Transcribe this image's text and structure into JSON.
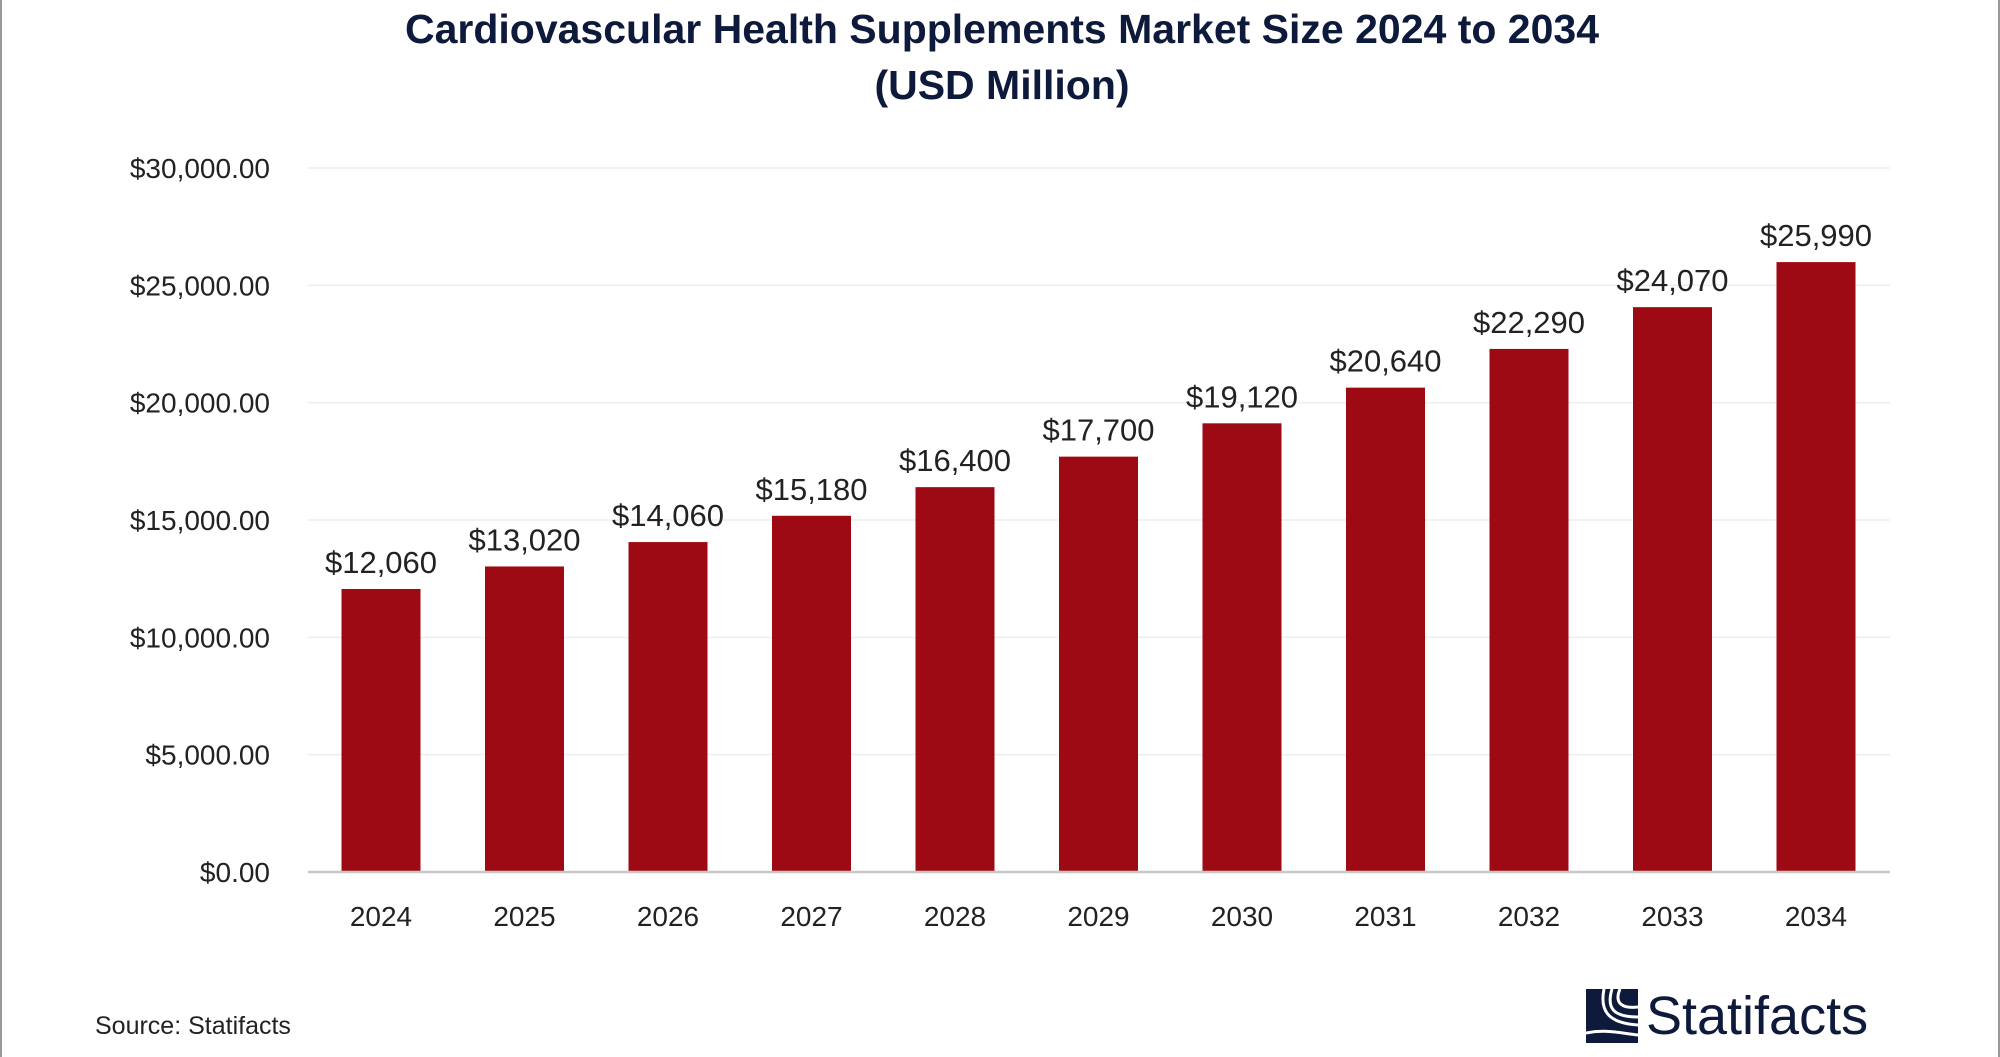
{
  "chart_data": {
    "type": "bar",
    "title": "Cardiovascular Health Supplements Market Size 2024 to 2034",
    "subtitle": "(USD Million)",
    "categories": [
      "2024",
      "2025",
      "2026",
      "2027",
      "2028",
      "2029",
      "2030",
      "2031",
      "2032",
      "2033",
      "2034"
    ],
    "values": [
      12060,
      13020,
      14060,
      15180,
      16400,
      17700,
      19120,
      20640,
      22290,
      24070,
      25990
    ],
    "data_labels": [
      "$12,060",
      "$13,020",
      "$14,060",
      "$15,180",
      "$16,400",
      "$17,700",
      "$19,120",
      "$20,640",
      "$22,290",
      "$24,070",
      "$25,990"
    ],
    "y_ticks": [
      0,
      5000,
      10000,
      15000,
      20000,
      25000,
      30000
    ],
    "y_tick_labels": [
      "$0.00",
      "$5,000.00",
      "$10,000.00",
      "$15,000.00",
      "$20,000.00",
      "$25,000.00",
      "$30,000.00"
    ],
    "ylim": [
      0,
      30000
    ],
    "xlabel": "",
    "ylabel": "",
    "grid": true,
    "bar_color": "#9e0a14"
  },
  "source": "Source: Statifacts",
  "logo": {
    "text": "Statifacts",
    "color": "#0e1a3c"
  }
}
